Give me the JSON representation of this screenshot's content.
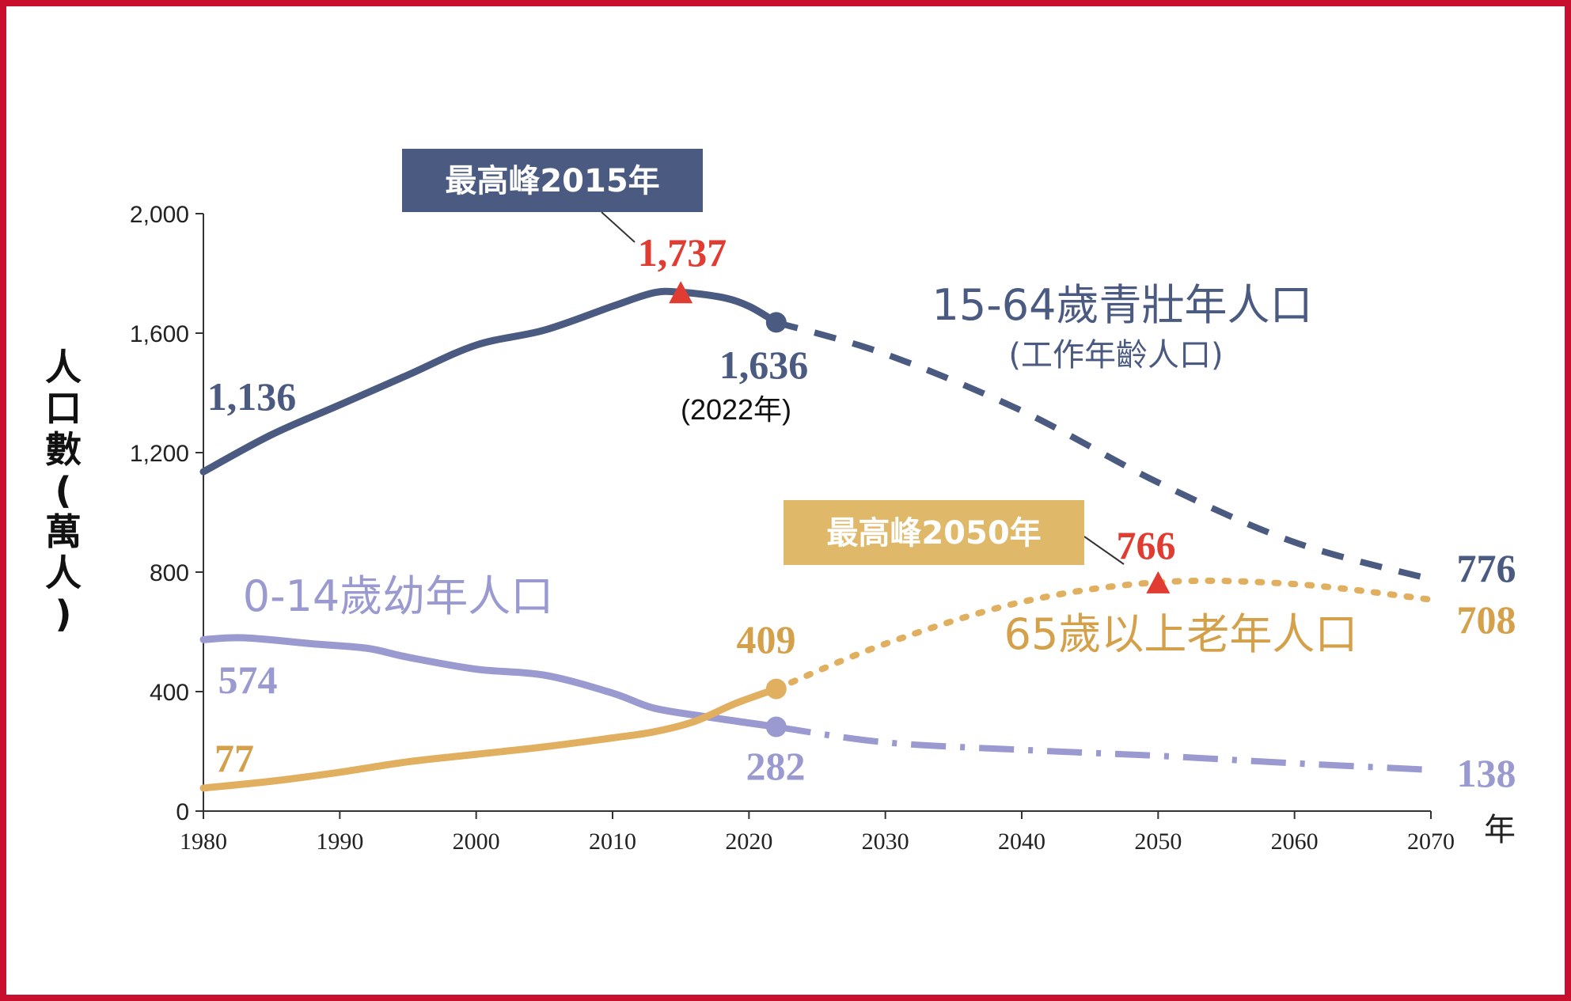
{
  "colors": {
    "border": "#c8102e",
    "working": "#4a5a80",
    "young": "#9a9ad0",
    "elderly": "#e0b060",
    "elderly_text": "#d4a04a",
    "peak": "#e03c31",
    "callout_working_bg": "#4a5a80",
    "callout_elderly_bg": "#dfb86a"
  },
  "chart_data": {
    "type": "line",
    "x_ticks": [
      "1980",
      "1990",
      "2000",
      "2010",
      "2020",
      "2030",
      "2040",
      "2050",
      "2060",
      "2070"
    ],
    "y_ticks": [
      "0",
      "400",
      "800",
      "1,200",
      "1,600",
      "2,000"
    ],
    "xlim": [
      1980,
      2070
    ],
    "ylim": [
      0,
      2000
    ],
    "ylabel": "人口數(萬人)",
    "x_unit": "年",
    "grid": false,
    "series": [
      {
        "name": "15-64歲青壯年人口",
        "subtitle": "(工作年齡人口)",
        "style": "solid-then-dashed",
        "historical": [
          [
            1980,
            1136
          ],
          [
            1985,
            1260
          ],
          [
            1990,
            1360
          ],
          [
            1995,
            1460
          ],
          [
            2000,
            1560
          ],
          [
            2005,
            1610
          ],
          [
            2010,
            1690
          ],
          [
            2013,
            1735
          ],
          [
            2015,
            1737
          ],
          [
            2018,
            1720
          ],
          [
            2020,
            1690
          ],
          [
            2022,
            1636
          ]
        ],
        "projection": [
          [
            2022,
            1636
          ],
          [
            2030,
            1530
          ],
          [
            2040,
            1340
          ],
          [
            2050,
            1100
          ],
          [
            2060,
            900
          ],
          [
            2070,
            776
          ]
        ],
        "labels": {
          "start": "1,136",
          "current": "1,636",
          "current_note": "(2022年)",
          "peak": "1,737",
          "end": "776"
        },
        "peak_year": 2015,
        "peak_value": 1737,
        "callout": "最高峰2015年"
      },
      {
        "name": "0-14歲幼年人口",
        "style": "solid-then-dashdot",
        "historical": [
          [
            1980,
            574
          ],
          [
            1983,
            580
          ],
          [
            1988,
            560
          ],
          [
            1992,
            545
          ],
          [
            1995,
            515
          ],
          [
            2000,
            475
          ],
          [
            2005,
            455
          ],
          [
            2010,
            395
          ],
          [
            2013,
            345
          ],
          [
            2017,
            315
          ],
          [
            2020,
            295
          ],
          [
            2022,
            282
          ]
        ],
        "projection": [
          [
            2022,
            282
          ],
          [
            2030,
            230
          ],
          [
            2040,
            205
          ],
          [
            2050,
            185
          ],
          [
            2060,
            160
          ],
          [
            2070,
            138
          ]
        ],
        "labels": {
          "start": "574",
          "current": "282",
          "end": "138"
        }
      },
      {
        "name": "65歲以上老年人口",
        "style": "solid-then-dotted",
        "historical": [
          [
            1980,
            77
          ],
          [
            1985,
            100
          ],
          [
            1990,
            130
          ],
          [
            1995,
            165
          ],
          [
            2000,
            190
          ],
          [
            2005,
            215
          ],
          [
            2010,
            245
          ],
          [
            2013,
            265
          ],
          [
            2016,
            300
          ],
          [
            2019,
            360
          ],
          [
            2022,
            409
          ]
        ],
        "projection": [
          [
            2022,
            409
          ],
          [
            2030,
            560
          ],
          [
            2040,
            700
          ],
          [
            2050,
            766
          ],
          [
            2060,
            760
          ],
          [
            2070,
            708
          ]
        ],
        "labels": {
          "start": "77",
          "current": "409",
          "peak": "766",
          "end": "708"
        },
        "peak_year": 2050,
        "peak_value": 766,
        "callout": "最高峰2050年"
      }
    ]
  }
}
